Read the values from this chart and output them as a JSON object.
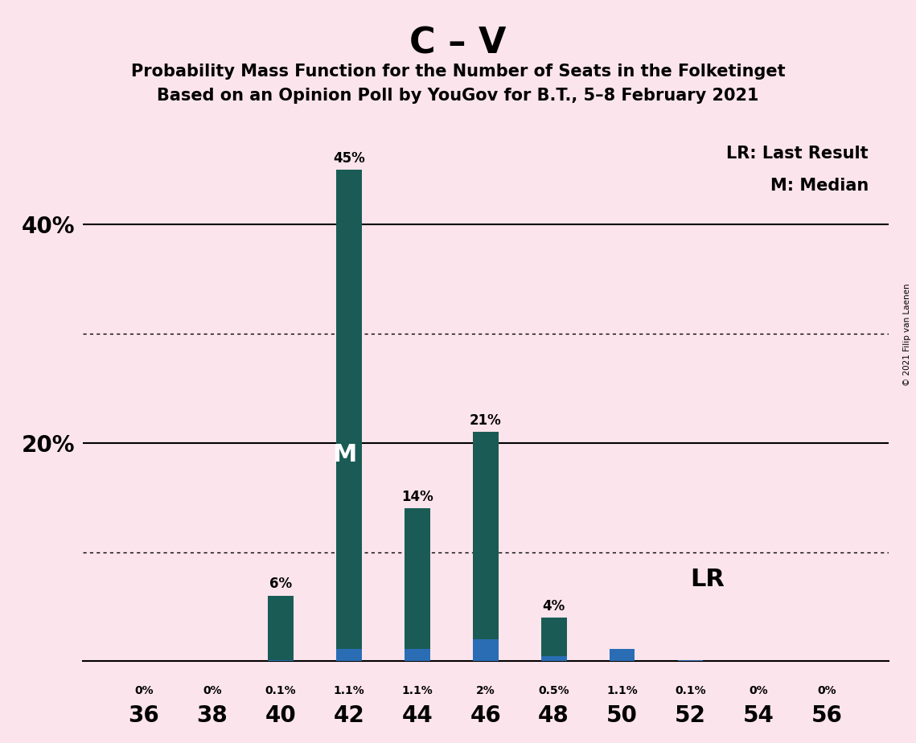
{
  "title_main": "C – V",
  "title_sub1": "Probability Mass Function for the Number of Seats in the Folketinget",
  "title_sub2": "Based on an Opinion Poll by YouGov for B.T., 5–8 February 2021",
  "copyright": "© 2021 Filip van Laenen",
  "background_color": "#fce4ec",
  "seats": [
    36,
    38,
    40,
    42,
    44,
    46,
    48,
    50,
    52,
    54,
    56
  ],
  "pmf_values": [
    0.0,
    0.0,
    0.06,
    0.45,
    0.14,
    0.21,
    0.04,
    0.0,
    0.0,
    0.0,
    0.0
  ],
  "pmf_labels": [
    "0%",
    "0%",
    "6%",
    "45%",
    "14%",
    "21%",
    "4%",
    "0%",
    "0%",
    "0%",
    "0%"
  ],
  "lr_values": [
    0.0,
    0.0,
    0.001,
    0.011,
    0.011,
    0.02,
    0.005,
    0.011,
    0.001,
    0.0,
    0.0
  ],
  "lr_labels": [
    "0%",
    "0%",
    "0.1%",
    "1.1%",
    "1.1%",
    "2%",
    "0.5%",
    "1.1%",
    "0.1%",
    "0%",
    "0%"
  ],
  "pmf_color": "#1a5c55",
  "lr_color": "#2a6db5",
  "median_seat": 42,
  "last_result_seat": 46,
  "ylim": [
    0,
    0.5
  ],
  "solid_yticks": [
    0.2,
    0.4
  ],
  "dotted_yticks": [
    0.1,
    0.3
  ],
  "legend_lr": "LR: Last Result",
  "legend_m": "M: Median",
  "lr_annotation": "LR",
  "bar_width": 0.75
}
